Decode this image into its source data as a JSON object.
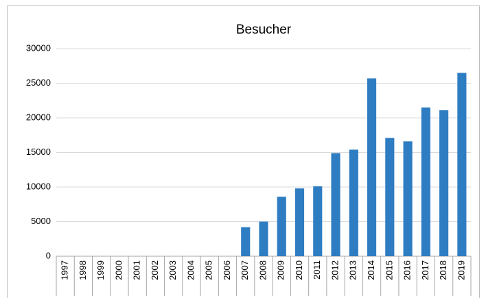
{
  "chart_data": {
    "type": "bar",
    "title": "Besucher",
    "categories": [
      "1997",
      "1998",
      "1999",
      "2000",
      "2001",
      "2002",
      "2003",
      "2004",
      "2005",
      "2006",
      "2007",
      "2008",
      "2009",
      "2010",
      "2011",
      "2012",
      "2013",
      "2014",
      "2015",
      "2016",
      "2017",
      "2018",
      "2019"
    ],
    "values": [
      0,
      0,
      0,
      0,
      0,
      0,
      0,
      0,
      0,
      0,
      4200,
      5000,
      8600,
      9800,
      10100,
      14900,
      15400,
      25700,
      17100,
      16600,
      21500,
      21100,
      26500
    ],
    "color": "#2e7dc2",
    "ylim": [
      0,
      30000
    ],
    "yticks": [
      0,
      5000,
      10000,
      15000,
      20000,
      25000,
      30000
    ],
    "grid": true
  }
}
